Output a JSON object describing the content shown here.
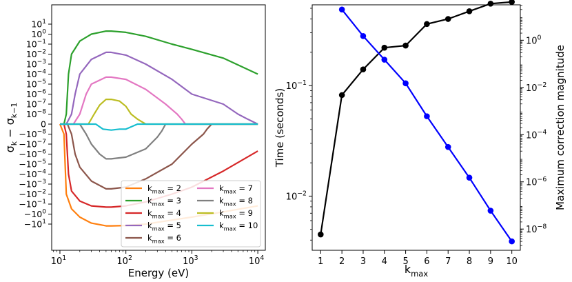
{
  "chart_data": [
    {
      "type": "line",
      "xscale": "log",
      "yscale": "symlog",
      "xlabel": "Energy (eV)",
      "ylabel": "σ_k − σ_{k−1}",
      "xlim": [
        7.5,
        13000
      ],
      "ylim": [
        -40,
        10
      ],
      "x_ticks": [
        {
          "value": 10,
          "label": "10^1"
        },
        {
          "value": 100,
          "label": "10^2"
        },
        {
          "value": 1000,
          "label": "10^3"
        },
        {
          "value": 10000,
          "label": "10^4"
        }
      ],
      "y_ticks": [
        {
          "value": 10,
          "label": "10^1"
        },
        {
          "value": 1,
          "label": "10^0"
        },
        {
          "value": 0.1,
          "label": "10^-1"
        },
        {
          "value": 0.01,
          "label": "10^-2"
        },
        {
          "value": 0.001,
          "label": "10^-3"
        },
        {
          "value": 0.0001,
          "label": "10^-4"
        },
        {
          "value": 1e-05,
          "label": "10^-5"
        },
        {
          "value": 1e-06,
          "label": "10^-6"
        },
        {
          "value": 1e-07,
          "label": "10^-7"
        },
        {
          "value": 1e-08,
          "label": "10^-8"
        },
        {
          "value": 0,
          "label": "0"
        },
        {
          "value": -1e-08,
          "label": "−10^-8"
        },
        {
          "value": -1e-07,
          "label": "−10^-7"
        },
        {
          "value": -1e-06,
          "label": "−10^-6"
        },
        {
          "value": -1e-05,
          "label": "−10^-5"
        },
        {
          "value": -0.0001,
          "label": "−10^-4"
        },
        {
          "value": -0.001,
          "label": "−10^-3"
        },
        {
          "value": -0.01,
          "label": "−10^-2"
        },
        {
          "value": -0.1,
          "label": "−10^-1"
        },
        {
          "value": -1,
          "label": "−10^0"
        },
        {
          "value": -10,
          "label": "−10^1"
        }
      ],
      "legend": {
        "placement": "lower-right",
        "columns": 2
      },
      "series": [
        {
          "name": "k_max = 2",
          "label_main": "k",
          "label_sub": "max",
          "label_rest": " = 2",
          "color": "#ff7f0e",
          "x": [
            10,
            11.5,
            12.5,
            15,
            20,
            30,
            50,
            60,
            100,
            200,
            500,
            1000,
            3000,
            10000
          ],
          "y": [
            0,
            -1e-08,
            -0.01,
            -0.3,
            -2,
            -8,
            -15,
            -15,
            -14,
            -10,
            -4,
            -2,
            -0.6,
            -0.15
          ]
        },
        {
          "name": "k_max = 3",
          "label_main": "k",
          "label_sub": "max",
          "label_rest": " = 3",
          "color": "#2ca02c",
          "x": [
            10,
            11.5,
            12.5,
            13.5,
            15,
            20,
            30,
            50,
            60,
            100,
            200,
            500,
            1000,
            3000,
            10000
          ],
          "y": [
            0,
            0,
            1e-08,
            0.0001,
            0.01,
            0.2,
            1,
            2,
            2,
            1.5,
            0.6,
            0.1,
            0.03,
            0.004,
            0.0001
          ]
        },
        {
          "name": "k_max = 4",
          "label_main": "k",
          "label_sub": "max",
          "label_rest": " = 4",
          "color": "#d62728",
          "x": [
            10,
            11.5,
            12.5,
            13.5,
            15,
            20,
            30,
            50,
            60,
            100,
            200,
            500,
            1000,
            3000,
            10000
          ],
          "y": [
            0,
            0,
            -1e-08,
            -0.0001,
            -0.005,
            -0.05,
            -0.15,
            -0.2,
            -0.2,
            -0.15,
            -0.06,
            -0.01,
            -0.002,
            -5e-05,
            -5e-07
          ]
        },
        {
          "name": "k_max = 5",
          "label_main": "k",
          "label_sub": "max",
          "label_rest": " = 5",
          "color": "#9467bd",
          "x": [
            10,
            12.5,
            15,
            17,
            20,
            30,
            50,
            60,
            100,
            200,
            500,
            1000,
            3000,
            5000,
            7000,
            10000
          ],
          "y": [
            0,
            0,
            1e-08,
            1e-06,
            0.0001,
            0.003,
            0.015,
            0.015,
            0.008,
            0.001,
            3e-05,
            1e-06,
            1e-07,
            1e-08,
            3e-09,
            0
          ]
        },
        {
          "name": "k_max = 6",
          "label_main": "k",
          "label_sub": "max",
          "label_rest": " = 6",
          "color": "#8c564b",
          "x": [
            10,
            13,
            15,
            17,
            20,
            30,
            50,
            60,
            100,
            200,
            500,
            1000,
            1500,
            1700,
            2000,
            10000
          ],
          "y": [
            0,
            0,
            -1e-08,
            -1e-06,
            -2e-05,
            -0.0005,
            -0.003,
            -0.003,
            -0.002,
            -0.0003,
            -1e-05,
            -1e-07,
            -1e-08,
            -3e-09,
            0,
            0
          ]
        },
        {
          "name": "k_max = 7",
          "label_main": "k",
          "label_sub": "max",
          "label_rest": " = 7",
          "color": "#e377c2",
          "x": [
            10,
            16,
            20,
            25,
            30,
            50,
            60,
            100,
            200,
            400,
            600,
            700,
            800,
            10000
          ],
          "y": [
            0,
            0,
            1e-08,
            1e-06,
            1e-05,
            5e-05,
            5e-05,
            3e-05,
            3e-06,
            1e-07,
            1e-08,
            2e-09,
            0,
            0
          ]
        },
        {
          "name": "k_max = 8",
          "label_main": "k",
          "label_sub": "max",
          "label_rest": " = 8",
          "color": "#7f7f7f",
          "x": [
            10,
            20,
            25,
            30,
            40,
            50,
            60,
            100,
            200,
            300,
            350,
            400,
            10000
          ],
          "y": [
            0,
            0,
            -1e-08,
            -1e-07,
            -1e-06,
            -3e-06,
            -3e-06,
            -2e-06,
            -3e-07,
            -2e-08,
            -5e-09,
            0,
            0
          ]
        },
        {
          "name": "k_max = 9",
          "label_main": "k",
          "label_sub": "max",
          "label_rest": " = 9",
          "color": "#bcbd22",
          "x": [
            10,
            27,
            33,
            40,
            50,
            60,
            80,
            100,
            120,
            150,
            200,
            10000
          ],
          "y": [
            0,
            0,
            1e-08,
            8e-08,
            3e-07,
            3e-07,
            2e-07,
            6e-08,
            1e-08,
            2e-09,
            0,
            0
          ]
        },
        {
          "name": "k_max = 10",
          "label_main": "k",
          "label_sub": "max",
          "label_rest": " = 10",
          "color": "#17becf",
          "x": [
            10,
            35,
            45,
            60,
            80,
            100,
            150,
            10000
          ],
          "y": [
            0,
            0,
            -3e-09,
            -4e-09,
            -2e-09,
            -5e-10,
            0,
            0
          ]
        }
      ]
    },
    {
      "type": "line",
      "xlabel": "k_max",
      "xlabel_main": "k",
      "xlabel_sub": "max",
      "ylabel_left": "Time (seconds)",
      "ylabel_right": "Maximum correction magnitude",
      "xlim": [
        0.6,
        10.4
      ],
      "ylim_left_log10": [
        -2.49,
        -0.27
      ],
      "ylim_right_log10": [
        -8.9,
        1.5
      ],
      "x_ticks": [
        1,
        2,
        3,
        4,
        5,
        6,
        7,
        8,
        9,
        10
      ],
      "y_left_ticks": [
        {
          "value": 0.1,
          "label": "10^-1"
        },
        {
          "value": 0.01,
          "label": "10^-2"
        }
      ],
      "y_right_ticks": [
        {
          "value": 1,
          "label": "10^0"
        },
        {
          "value": 0.01,
          "label": "10^-2"
        },
        {
          "value": 0.0001,
          "label": "10^-4"
        },
        {
          "value": 1e-06,
          "label": "10^-6"
        },
        {
          "value": 1e-08,
          "label": "10^-8"
        }
      ],
      "series": [
        {
          "axis": "left",
          "color": "#000000",
          "x": [
            1,
            2,
            3,
            4,
            5,
            6,
            7,
            8,
            9,
            10
          ],
          "y": [
            0.0045,
            0.082,
            0.14,
            0.22,
            0.23,
            0.36,
            0.4,
            0.47,
            0.55,
            0.57
          ]
        },
        {
          "axis": "right",
          "color": "#0000ff",
          "x": [
            2,
            3,
            4,
            5,
            6,
            7,
            8,
            9,
            10
          ],
          "y": [
            20,
            1.5,
            0.15,
            0.015,
            0.0006,
            3e-05,
            1.5e-06,
            6e-08,
            3e-09
          ]
        }
      ]
    }
  ]
}
